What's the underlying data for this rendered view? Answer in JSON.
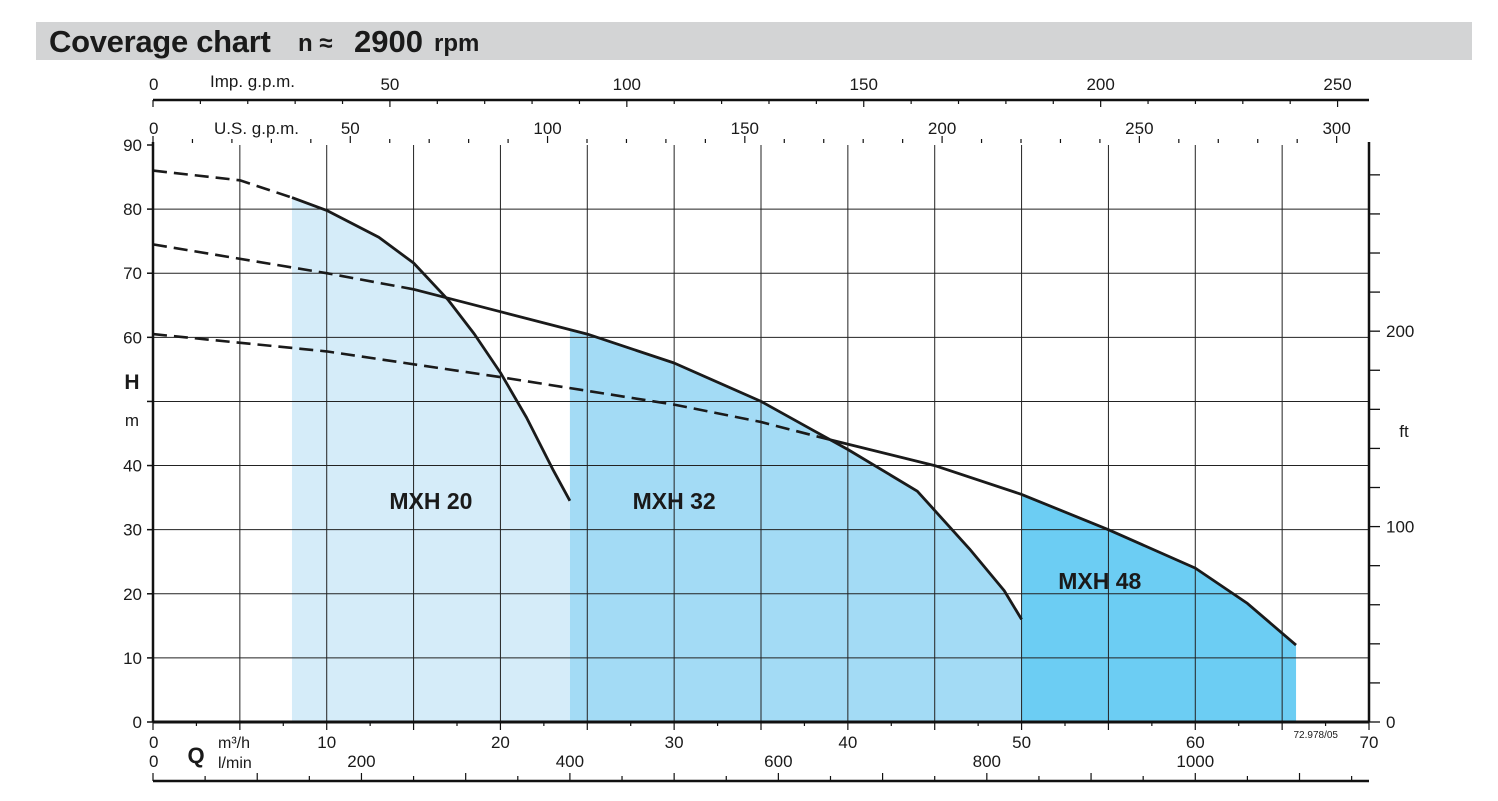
{
  "header": {
    "title": "Coverage chart",
    "speed_symbol": "n ≈",
    "speed_value": "2900",
    "speed_unit": "rpm"
  },
  "chart_data": {
    "type": "area",
    "title": "Coverage chart n ≈ 2900 rpm",
    "xlabel": "Q",
    "x_units": [
      "m³/h",
      "l/min"
    ],
    "ylabel": "H",
    "y_unit": "m",
    "y_right_unit": "ft",
    "xlim": [
      0,
      70
    ],
    "ylim": [
      0,
      90
    ],
    "grid": true,
    "x_ticks": [
      0,
      10,
      20,
      30,
      40,
      50,
      60,
      70
    ],
    "y_ticks": [
      0,
      10,
      20,
      30,
      40,
      50,
      60,
      70,
      80,
      90
    ],
    "y_tick_labels": [
      "0",
      "10",
      "20",
      "30",
      "40",
      "",
      "60",
      "70",
      "80",
      "90"
    ],
    "ft_ticks": [
      0,
      100,
      200
    ],
    "lmin_ticks": [
      0,
      200,
      400,
      600,
      800,
      1000
    ],
    "usgpm_ticks": [
      0,
      50,
      100,
      150,
      200,
      250,
      300
    ],
    "usgpm_label": "U.S. g.p.m.",
    "impgpm_ticks": [
      0,
      50,
      100,
      150,
      200,
      250
    ],
    "impgpm_label": "Imp. g.p.m.",
    "drawing_ref": "72.978/05",
    "colors": {
      "MXH 20": "#d5ecf9",
      "MXH 32": "#a3dbf5",
      "MXH 48": "#6ccdf3",
      "curve": "#1a1a1a"
    },
    "series": [
      {
        "name": "MXH 20",
        "label_at": [
          16,
          34.5
        ],
        "fill_from": 8,
        "fill_to": 24,
        "dashed": [
          [
            0,
            86
          ],
          [
            5,
            84.5
          ],
          [
            8,
            81.8
          ]
        ],
        "solid": [
          [
            8,
            81.8
          ],
          [
            10,
            79.8
          ],
          [
            13,
            75.6
          ],
          [
            15,
            71.6
          ],
          [
            17,
            65.8
          ],
          [
            18.5,
            60.5
          ],
          [
            20,
            54.5
          ],
          [
            21.5,
            47.5
          ],
          [
            23,
            39.5
          ],
          [
            24,
            34.5
          ]
        ]
      },
      {
        "name": "MXH 32",
        "label_at": [
          30,
          34.5
        ],
        "fill_from": 24,
        "fill_to": 50,
        "dashed": [
          [
            0,
            74.5
          ],
          [
            10,
            70
          ],
          [
            15,
            67.5
          ]
        ],
        "solid": [
          [
            15,
            67.5
          ],
          [
            20,
            64
          ],
          [
            25,
            60.5
          ],
          [
            30,
            56
          ],
          [
            35,
            50
          ],
          [
            38,
            45.5
          ],
          [
            40,
            42.5
          ],
          [
            44,
            36
          ],
          [
            45,
            33
          ],
          [
            47,
            27
          ],
          [
            49,
            20.5
          ],
          [
            50,
            16
          ]
        ]
      },
      {
        "name": "MXH 48",
        "label_at": [
          54.5,
          22
        ],
        "fill_from": 50,
        "fill_to": 65.8,
        "dashed": [
          [
            0,
            60.5
          ],
          [
            10,
            57.8
          ],
          [
            20,
            53.8
          ],
          [
            30,
            49.5
          ],
          [
            35,
            46.8
          ],
          [
            39,
            44
          ]
        ],
        "solid": [
          [
            39,
            44
          ],
          [
            45,
            40
          ],
          [
            50,
            35.5
          ],
          [
            55,
            30
          ],
          [
            60,
            24
          ],
          [
            63,
            18.5
          ],
          [
            65.8,
            12
          ]
        ]
      }
    ]
  }
}
